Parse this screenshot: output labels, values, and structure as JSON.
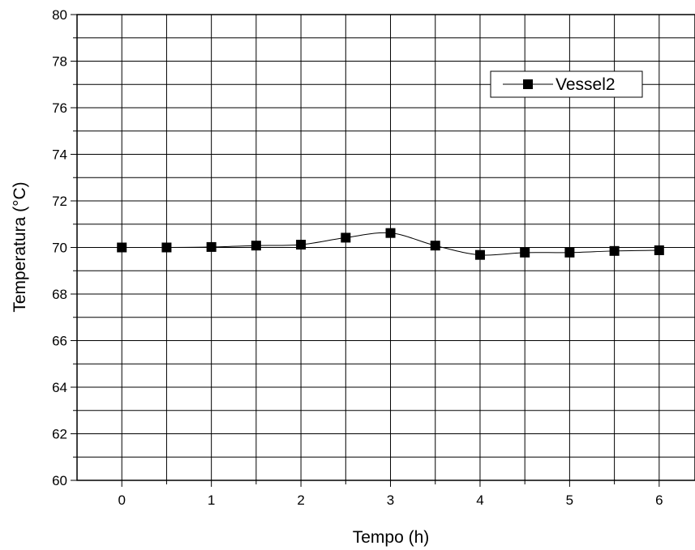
{
  "chart_data": {
    "type": "line",
    "title": "",
    "xlabel": "Tempo (h)",
    "ylabel": "Temperatura (°C)",
    "xlim": [
      -0.5,
      6.4
    ],
    "ylim": [
      60,
      80
    ],
    "xticks": [
      "0",
      "1",
      "2",
      "3",
      "4",
      "5",
      "6"
    ],
    "yticks": [
      "60",
      "62",
      "64",
      "66",
      "68",
      "70",
      "72",
      "74",
      "76",
      "78",
      "80"
    ],
    "grid": true,
    "legend_position": "top-right",
    "marker": "square",
    "series": [
      {
        "name": "Vessel2",
        "color": "#000000",
        "x": [
          0,
          0.5,
          1,
          1.5,
          2,
          2.5,
          3,
          3.5,
          4,
          4.5,
          5,
          5.5,
          6
        ],
        "y": [
          70.0,
          70.0,
          70.02,
          70.08,
          70.12,
          70.42,
          70.62,
          70.08,
          69.68,
          69.78,
          69.78,
          69.85,
          69.88
        ]
      }
    ]
  }
}
